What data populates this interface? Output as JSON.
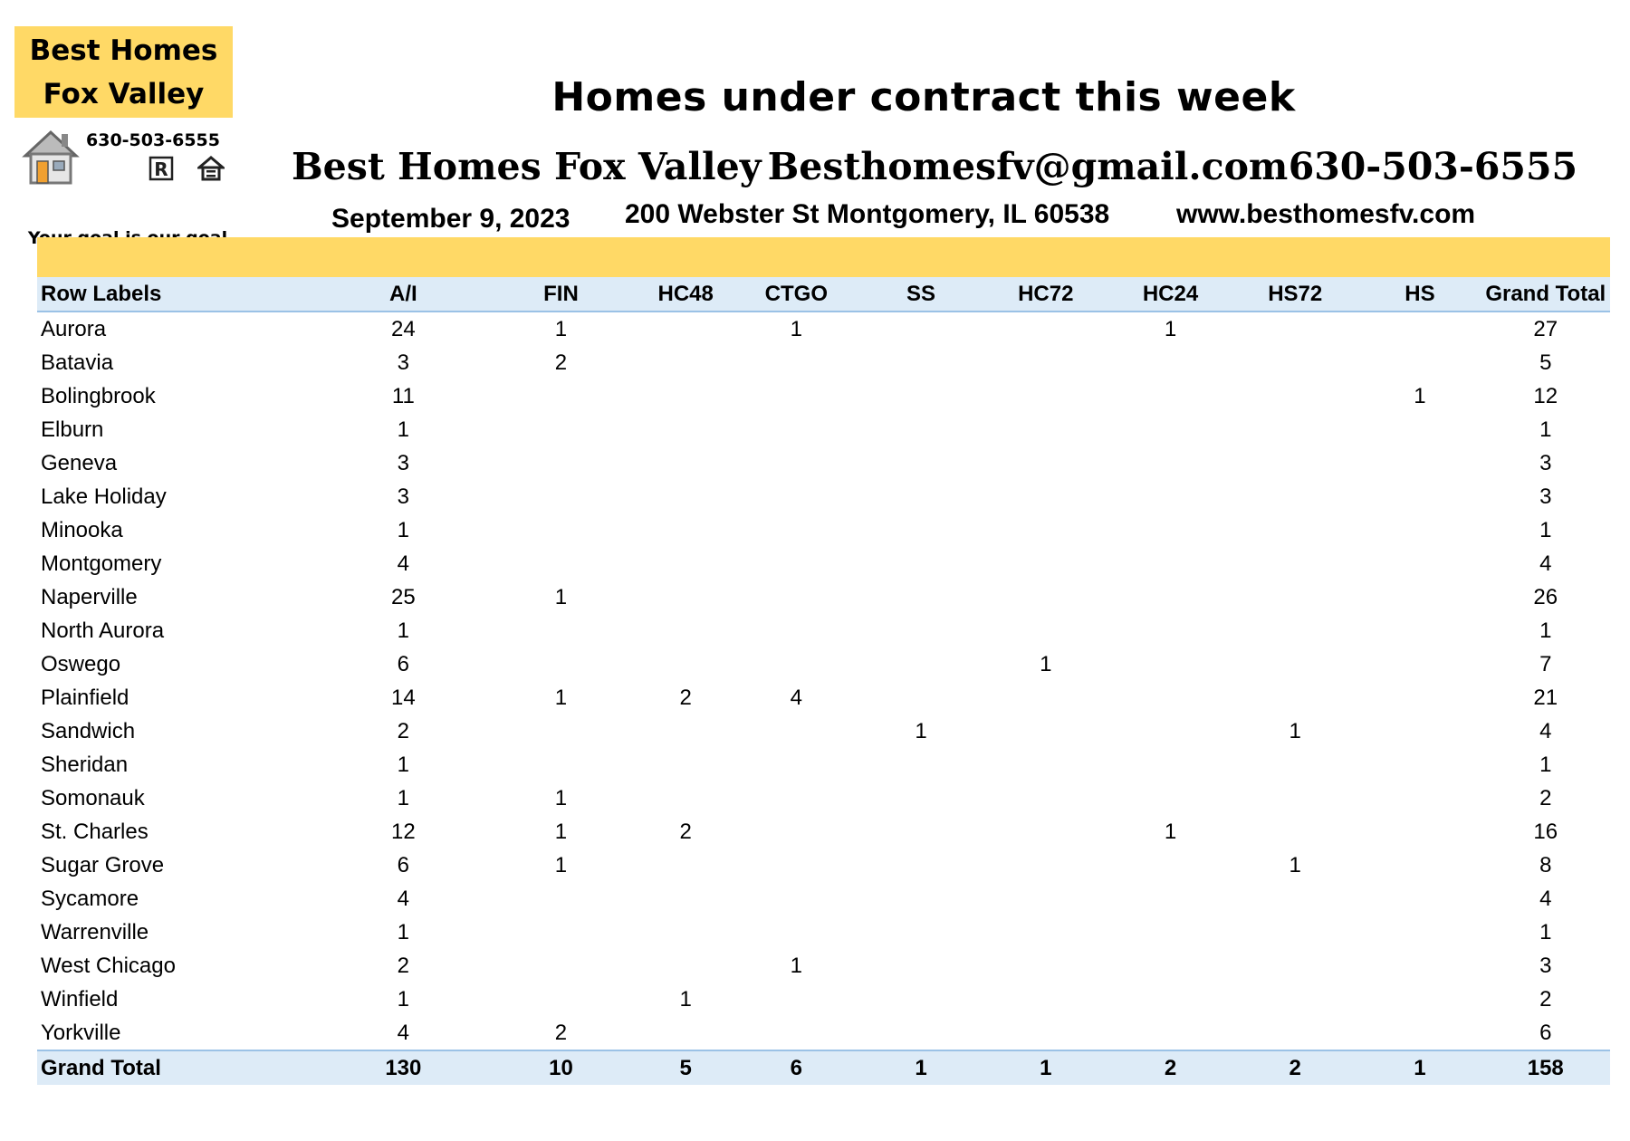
{
  "logo": {
    "line1": "Best Homes",
    "line2": "Fox Valley",
    "phone": "630-503-6555",
    "tagline": "Your goal is our goal",
    "icons": [
      "house-icon",
      "realtor-icon",
      "equal-housing-icon"
    ],
    "brand_color": "#ffd966"
  },
  "header": {
    "title": "Homes under contract this week",
    "company": "Best Homes Fox Valley",
    "email": "Besthomesfv@gmail.com",
    "phone": "630-503-6555",
    "date": "September 9, 2023",
    "address": "200 Webster St Montgomery, IL 60538",
    "website": "www.besthomesfv.com"
  },
  "table": {
    "header_band_color": "#ffd966",
    "header_row_color": "#ddebf7",
    "columns": [
      "Row Labels",
      "A/I",
      "FIN",
      "HC48",
      "CTGO",
      "SS",
      "HC72",
      "HC24",
      "HS72",
      "HS",
      "Grand Total"
    ],
    "rows": [
      [
        "Aurora",
        "24",
        "1",
        "",
        "1",
        "",
        "",
        "1",
        "",
        "",
        "27"
      ],
      [
        "Batavia",
        "3",
        "2",
        "",
        "",
        "",
        "",
        "",
        "",
        "",
        "5"
      ],
      [
        "Bolingbrook",
        "11",
        "",
        "",
        "",
        "",
        "",
        "",
        "",
        "1",
        "12"
      ],
      [
        "Elburn",
        "1",
        "",
        "",
        "",
        "",
        "",
        "",
        "",
        "",
        "1"
      ],
      [
        "Geneva",
        "3",
        "",
        "",
        "",
        "",
        "",
        "",
        "",
        "",
        "3"
      ],
      [
        "Lake Holiday",
        "3",
        "",
        "",
        "",
        "",
        "",
        "",
        "",
        "",
        "3"
      ],
      [
        "Minooka",
        "1",
        "",
        "",
        "",
        "",
        "",
        "",
        "",
        "",
        "1"
      ],
      [
        "Montgomery",
        "4",
        "",
        "",
        "",
        "",
        "",
        "",
        "",
        "",
        "4"
      ],
      [
        "Naperville",
        "25",
        "1",
        "",
        "",
        "",
        "",
        "",
        "",
        "",
        "26"
      ],
      [
        "North Aurora",
        "1",
        "",
        "",
        "",
        "",
        "",
        "",
        "",
        "",
        "1"
      ],
      [
        "Oswego",
        "6",
        "",
        "",
        "",
        "",
        "1",
        "",
        "",
        "",
        "7"
      ],
      [
        "Plainfield",
        "14",
        "1",
        "2",
        "4",
        "",
        "",
        "",
        "",
        "",
        "21"
      ],
      [
        "Sandwich",
        "2",
        "",
        "",
        "",
        "1",
        "",
        "",
        "1",
        "",
        "4"
      ],
      [
        "Sheridan",
        "1",
        "",
        "",
        "",
        "",
        "",
        "",
        "",
        "",
        "1"
      ],
      [
        "Somonauk",
        "1",
        "1",
        "",
        "",
        "",
        "",
        "",
        "",
        "",
        "2"
      ],
      [
        "St. Charles",
        "12",
        "1",
        "2",
        "",
        "",
        "",
        "1",
        "",
        "",
        "16"
      ],
      [
        "Sugar Grove",
        "6",
        "1",
        "",
        "",
        "",
        "",
        "",
        "1",
        "",
        "8"
      ],
      [
        "Sycamore",
        "4",
        "",
        "",
        "",
        "",
        "",
        "",
        "",
        "",
        "4"
      ],
      [
        "Warrenville",
        "1",
        "",
        "",
        "",
        "",
        "",
        "",
        "",
        "",
        "1"
      ],
      [
        "West Chicago",
        "2",
        "",
        "",
        "1",
        "",
        "",
        "",
        "",
        "",
        "3"
      ],
      [
        "Winfield",
        "1",
        "",
        "1",
        "",
        "",
        "",
        "",
        "",
        "",
        "2"
      ],
      [
        "Yorkville",
        "4",
        "2",
        "",
        "",
        "",
        "",
        "",
        "",
        "",
        "6"
      ]
    ],
    "total_row": [
      "Grand Total",
      "130",
      "10",
      "5",
      "6",
      "1",
      "1",
      "2",
      "2",
      "1",
      "158"
    ]
  }
}
